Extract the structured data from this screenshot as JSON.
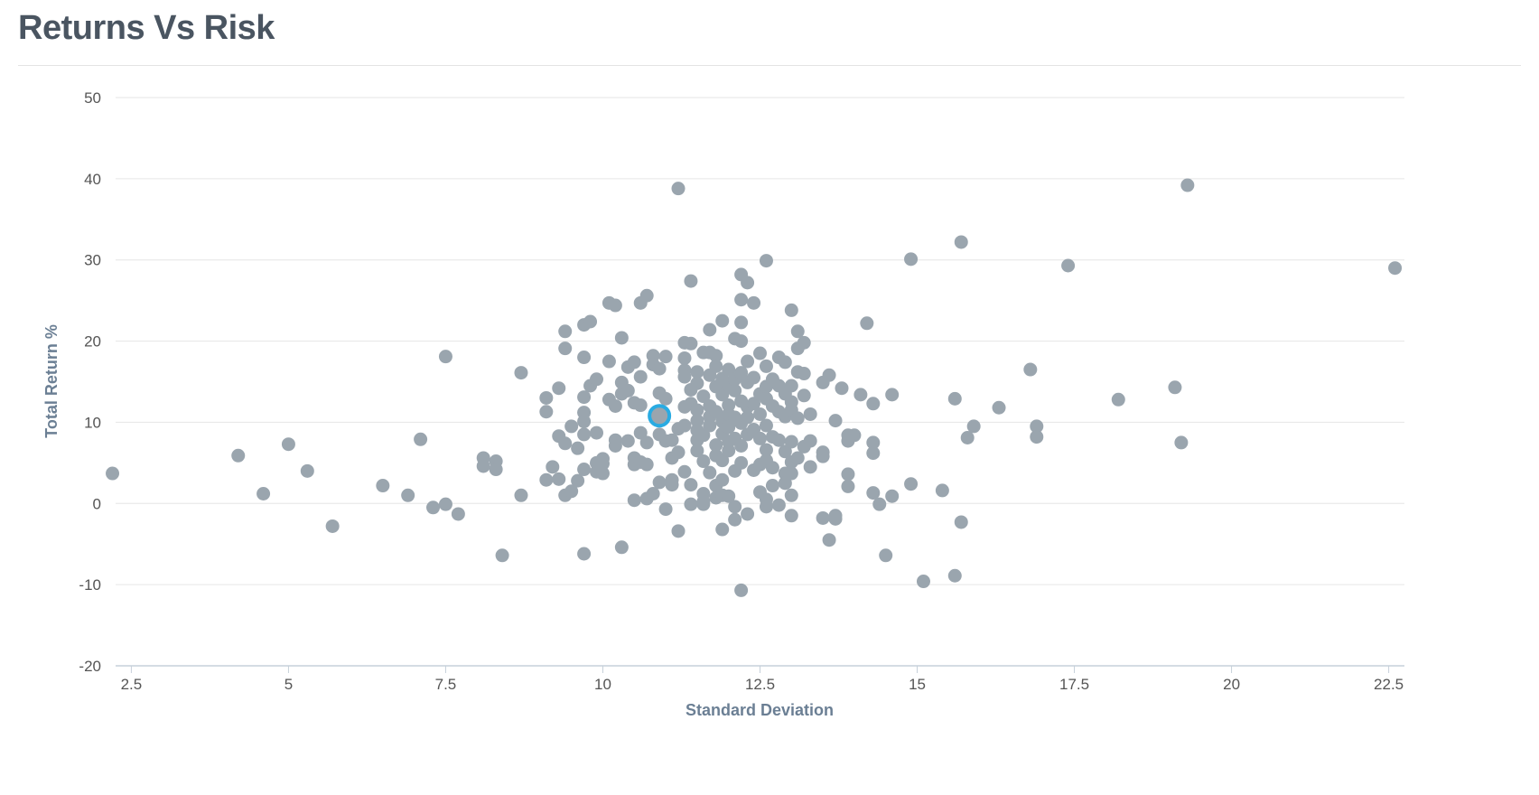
{
  "header": {
    "title": "Returns Vs Risk"
  },
  "chart_data": {
    "type": "scatter",
    "title": "Returns Vs Risk",
    "xlabel": "Standard Deviation",
    "ylabel": "Total Return %",
    "xlim": [
      2.25,
      22.75
    ],
    "ylim": [
      -20,
      50
    ],
    "xticks": [
      2.5,
      5,
      7.5,
      10,
      12.5,
      15,
      17.5,
      20,
      22.5
    ],
    "xtick_labels": [
      "2.5",
      "5",
      "7.5",
      "10",
      "12.5",
      "15",
      "17.5",
      "20",
      "22.5"
    ],
    "yticks": [
      -20,
      -10,
      0,
      10,
      20,
      30,
      40,
      50
    ],
    "ytick_labels": [
      "-20",
      "-10",
      "0",
      "10",
      "20",
      "30",
      "40",
      "50"
    ],
    "grid": "horizontal",
    "colors": {
      "points": "#9aa5ae",
      "highlight": "#29abe2",
      "grid": "#e6e6e6",
      "axis": "#c6d0da"
    },
    "highlight": {
      "x": 10.9,
      "y": 10.8
    },
    "points": [
      [
        2.2,
        3.7
      ],
      [
        4.2,
        5.9
      ],
      [
        4.6,
        1.2
      ],
      [
        5.0,
        7.3
      ],
      [
        5.3,
        4.0
      ],
      [
        5.7,
        -2.8
      ],
      [
        6.5,
        2.2
      ],
      [
        6.9,
        1.0
      ],
      [
        7.1,
        7.9
      ],
      [
        7.3,
        -0.5
      ],
      [
        7.5,
        -0.1
      ],
      [
        7.5,
        18.1
      ],
      [
        7.7,
        -1.3
      ],
      [
        8.1,
        5.6
      ],
      [
        8.1,
        4.6
      ],
      [
        8.3,
        5.2
      ],
      [
        8.3,
        4.2
      ],
      [
        8.4,
        -6.4
      ],
      [
        8.7,
        16.1
      ],
      [
        8.7,
        1.0
      ],
      [
        9.1,
        13.0
      ],
      [
        9.1,
        11.3
      ],
      [
        9.1,
        2.9
      ],
      [
        9.2,
        4.5
      ],
      [
        9.3,
        14.2
      ],
      [
        9.3,
        8.3
      ],
      [
        9.3,
        3.0
      ],
      [
        9.4,
        21.2
      ],
      [
        9.4,
        19.1
      ],
      [
        9.4,
        7.4
      ],
      [
        9.4,
        1.0
      ],
      [
        9.5,
        9.5
      ],
      [
        9.5,
        1.5
      ],
      [
        9.6,
        6.8
      ],
      [
        9.6,
        2.8
      ],
      [
        9.7,
        22.0
      ],
      [
        9.7,
        18.0
      ],
      [
        9.7,
        13.1
      ],
      [
        9.7,
        11.2
      ],
      [
        9.7,
        10.1
      ],
      [
        9.7,
        8.5
      ],
      [
        9.7,
        4.2
      ],
      [
        9.7,
        -6.2
      ],
      [
        9.8,
        22.4
      ],
      [
        9.8,
        14.5
      ],
      [
        9.9,
        15.3
      ],
      [
        9.9,
        8.7
      ],
      [
        9.9,
        5.0
      ],
      [
        9.9,
        3.9
      ],
      [
        10.0,
        5.5
      ],
      [
        10.0,
        4.9
      ],
      [
        10.0,
        3.7
      ],
      [
        10.1,
        24.7
      ],
      [
        10.1,
        17.5
      ],
      [
        10.1,
        12.8
      ],
      [
        10.2,
        24.4
      ],
      [
        10.2,
        12.0
      ],
      [
        10.2,
        7.8
      ],
      [
        10.2,
        7.1
      ],
      [
        10.3,
        20.4
      ],
      [
        10.3,
        14.9
      ],
      [
        10.3,
        13.5
      ],
      [
        10.3,
        -5.4
      ],
      [
        10.4,
        16.8
      ],
      [
        10.4,
        13.9
      ],
      [
        10.4,
        7.7
      ],
      [
        10.5,
        17.4
      ],
      [
        10.5,
        12.4
      ],
      [
        10.5,
        5.6
      ],
      [
        10.5,
        4.8
      ],
      [
        10.5,
        0.4
      ],
      [
        10.6,
        24.7
      ],
      [
        10.6,
        15.6
      ],
      [
        10.6,
        12.1
      ],
      [
        10.6,
        8.7
      ],
      [
        10.6,
        5.1
      ],
      [
        10.7,
        25.6
      ],
      [
        10.7,
        7.5
      ],
      [
        10.7,
        4.8
      ],
      [
        10.7,
        0.6
      ],
      [
        10.8,
        18.2
      ],
      [
        10.8,
        17.1
      ],
      [
        10.8,
        1.2
      ],
      [
        10.9,
        16.6
      ],
      [
        10.9,
        13.6
      ],
      [
        10.9,
        8.5
      ],
      [
        10.9,
        2.6
      ],
      [
        10.9,
        11.4
      ],
      [
        10.9,
        10.3
      ],
      [
        11.0,
        18.1
      ],
      [
        11.0,
        12.9
      ],
      [
        11.0,
        7.7
      ],
      [
        11.0,
        -0.7
      ],
      [
        11.1,
        5.6
      ],
      [
        11.1,
        2.9
      ],
      [
        11.1,
        2.3
      ],
      [
        11.2,
        38.8
      ],
      [
        11.2,
        9.2
      ],
      [
        11.2,
        6.3
      ],
      [
        11.2,
        -3.4
      ],
      [
        11.3,
        19.8
      ],
      [
        11.3,
        17.9
      ],
      [
        11.3,
        16.4
      ],
      [
        11.3,
        15.6
      ],
      [
        11.4,
        27.4
      ],
      [
        11.4,
        19.7
      ],
      [
        11.4,
        12.3
      ],
      [
        11.4,
        2.3
      ],
      [
        11.5,
        16.2
      ],
      [
        11.5,
        14.8
      ],
      [
        11.5,
        11.5
      ],
      [
        11.5,
        10.2
      ],
      [
        11.5,
        9.0
      ],
      [
        11.5,
        7.8
      ],
      [
        11.5,
        6.5
      ],
      [
        11.6,
        18.6
      ],
      [
        11.6,
        13.2
      ],
      [
        11.6,
        8.4
      ],
      [
        11.6,
        5.2
      ],
      [
        11.6,
        1.2
      ],
      [
        11.6,
        -0.1
      ],
      [
        11.7,
        18.6
      ],
      [
        11.7,
        15.8
      ],
      [
        11.7,
        12.0
      ],
      [
        11.7,
        10.7
      ],
      [
        11.7,
        9.6
      ],
      [
        11.7,
        3.8
      ],
      [
        11.8,
        18.2
      ],
      [
        11.8,
        16.9
      ],
      [
        11.8,
        14.4
      ],
      [
        11.8,
        11.3
      ],
      [
        11.8,
        7.2
      ],
      [
        11.8,
        5.9
      ],
      [
        11.8,
        2.2
      ],
      [
        11.8,
        0.7
      ],
      [
        11.9,
        15.4
      ],
      [
        11.9,
        13.4
      ],
      [
        11.9,
        10.1
      ],
      [
        11.9,
        8.6
      ],
      [
        11.9,
        5.3
      ],
      [
        11.9,
        2.9
      ],
      [
        11.9,
        1.0
      ],
      [
        12.0,
        16.5
      ],
      [
        12.0,
        14.6
      ],
      [
        12.0,
        12.1
      ],
      [
        12.0,
        11.0
      ],
      [
        12.0,
        9.4
      ],
      [
        12.0,
        7.6
      ],
      [
        12.0,
        6.5
      ],
      [
        12.0,
        0.9
      ],
      [
        12.1,
        15.3
      ],
      [
        12.1,
        13.9
      ],
      [
        12.1,
        10.6
      ],
      [
        12.1,
        8.0
      ],
      [
        12.1,
        4.0
      ],
      [
        12.2,
        16.1
      ],
      [
        12.2,
        12.6
      ],
      [
        12.2,
        9.9
      ],
      [
        12.2,
        7.1
      ],
      [
        12.2,
        5.0
      ],
      [
        12.3,
        17.5
      ],
      [
        12.3,
        14.9
      ],
      [
        12.3,
        11.9
      ],
      [
        12.3,
        10.6
      ],
      [
        12.3,
        8.5
      ],
      [
        12.4,
        15.5
      ],
      [
        12.4,
        12.3
      ],
      [
        12.4,
        9.1
      ],
      [
        12.4,
        4.1
      ],
      [
        12.5,
        18.5
      ],
      [
        12.5,
        13.5
      ],
      [
        12.5,
        11.0
      ],
      [
        12.5,
        8.0
      ],
      [
        12.5,
        4.8
      ],
      [
        12.6,
        16.9
      ],
      [
        12.6,
        14.4
      ],
      [
        12.6,
        12.9
      ],
      [
        12.6,
        9.6
      ],
      [
        12.6,
        6.6
      ],
      [
        12.6,
        5.3
      ],
      [
        12.7,
        15.3
      ],
      [
        12.7,
        12.0
      ],
      [
        12.7,
        8.2
      ],
      [
        12.7,
        4.4
      ],
      [
        12.8,
        18.0
      ],
      [
        12.8,
        14.5
      ],
      [
        12.8,
        11.3
      ],
      [
        12.8,
        7.8
      ],
      [
        12.9,
        17.4
      ],
      [
        12.9,
        13.5
      ],
      [
        12.9,
        10.7
      ],
      [
        12.9,
        6.4
      ],
      [
        12.9,
        3.7
      ],
      [
        13.0,
        14.5
      ],
      [
        13.0,
        12.5
      ],
      [
        13.0,
        11.5
      ],
      [
        13.0,
        7.6
      ],
      [
        13.0,
        5.1
      ],
      [
        13.1,
        16.2
      ],
      [
        13.1,
        10.5
      ],
      [
        13.1,
        5.6
      ],
      [
        13.2,
        16.0
      ],
      [
        13.2,
        13.3
      ],
      [
        13.2,
        7.0
      ],
      [
        13.3,
        11.0
      ],
      [
        13.3,
        7.7
      ],
      [
        13.3,
        4.5
      ],
      [
        12.2,
        28.2
      ],
      [
        12.3,
        27.2
      ],
      [
        12.2,
        25.1
      ],
      [
        12.4,
        24.7
      ],
      [
        12.6,
        29.9
      ],
      [
        12.2,
        22.3
      ],
      [
        13.0,
        23.8
      ],
      [
        13.1,
        21.2
      ],
      [
        12.1,
        20.3
      ],
      [
        12.2,
        20.0
      ],
      [
        11.7,
        21.4
      ],
      [
        11.9,
        22.5
      ],
      [
        13.2,
        19.8
      ],
      [
        13.1,
        19.1
      ],
      [
        14.2,
        22.2
      ],
      [
        13.6,
        15.8
      ],
      [
        13.5,
        14.9
      ],
      [
        13.8,
        14.2
      ],
      [
        14.1,
        13.4
      ],
      [
        14.3,
        12.3
      ],
      [
        14.6,
        13.4
      ],
      [
        13.7,
        10.2
      ],
      [
        13.9,
        8.4
      ],
      [
        14.0,
        8.4
      ],
      [
        13.9,
        7.7
      ],
      [
        14.3,
        7.5
      ],
      [
        14.3,
        6.2
      ],
      [
        13.5,
        6.3
      ],
      [
        13.5,
        5.8
      ],
      [
        13.9,
        3.6
      ],
      [
        13.9,
        2.1
      ],
      [
        14.3,
        1.3
      ],
      [
        14.4,
        -0.1
      ],
      [
        14.6,
        0.9
      ],
      [
        14.9,
        2.4
      ],
      [
        15.4,
        1.6
      ],
      [
        13.5,
        -1.8
      ],
      [
        13.7,
        -1.5
      ],
      [
        13.7,
        -1.9
      ],
      [
        13.6,
        -4.5
      ],
      [
        14.5,
        -6.4
      ],
      [
        15.1,
        -9.6
      ],
      [
        15.6,
        -8.9
      ],
      [
        15.7,
        -2.3
      ],
      [
        14.9,
        30.1
      ],
      [
        15.7,
        32.2
      ],
      [
        15.6,
        12.9
      ],
      [
        15.9,
        9.5
      ],
      [
        15.8,
        8.1
      ],
      [
        16.3,
        11.8
      ],
      [
        16.8,
        16.5
      ],
      [
        16.9,
        9.5
      ],
      [
        16.9,
        8.2
      ],
      [
        17.4,
        29.3
      ],
      [
        18.2,
        12.8
      ],
      [
        19.1,
        14.3
      ],
      [
        19.2,
        7.5
      ],
      [
        19.3,
        39.2
      ],
      [
        22.6,
        29.0
      ],
      [
        12.2,
        -10.7
      ],
      [
        11.9,
        -3.2
      ],
      [
        12.1,
        -2.0
      ],
      [
        12.3,
        -1.3
      ],
      [
        12.1,
        -0.4
      ],
      [
        13.0,
        -1.5
      ],
      [
        12.6,
        -0.4
      ],
      [
        12.8,
        -0.2
      ],
      [
        12.6,
        0.5
      ],
      [
        12.5,
        1.4
      ],
      [
        12.7,
        2.2
      ],
      [
        12.9,
        2.5
      ],
      [
        13.0,
        1.0
      ],
      [
        13.0,
        3.7
      ],
      [
        11.4,
        -0.1
      ],
      [
        11.6,
        0.2
      ],
      [
        11.3,
        3.9
      ],
      [
        11.1,
        7.8
      ],
      [
        11.3,
        9.6
      ],
      [
        11.3,
        11.9
      ],
      [
        11.4,
        14.0
      ]
    ]
  }
}
